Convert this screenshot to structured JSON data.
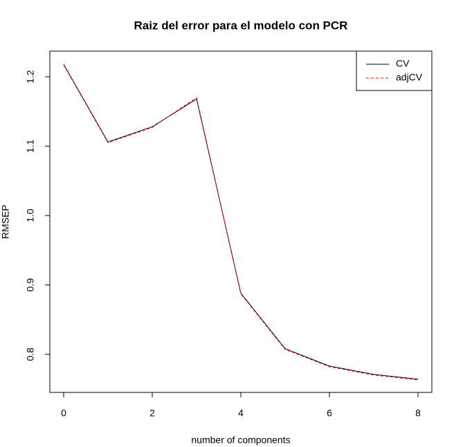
{
  "chart_data": {
    "type": "line",
    "title": "Raiz del error para el modelo con PCR",
    "x_label": "number of components",
    "y_label": "RMSEP",
    "x": [
      0,
      1,
      2,
      3,
      4,
      5,
      6,
      7,
      8
    ],
    "series": [
      {
        "name": "CV",
        "color": "#000000",
        "line_style": "solid",
        "values": [
          1.218,
          1.106,
          1.128,
          1.168,
          0.888,
          0.808,
          0.783,
          0.771,
          0.764
        ]
      },
      {
        "name": "adjCV",
        "color": "#ff0000",
        "line_style": "dashed",
        "values": [
          1.217,
          1.105,
          1.127,
          1.17,
          0.887,
          0.807,
          0.782,
          0.77,
          0.763
        ]
      }
    ],
    "xlim": [
      -0.3125,
      8.3125
    ],
    "xticks": [
      0,
      2,
      4,
      6,
      8
    ],
    "ylim": [
      0.745,
      1.237
    ],
    "yticks": [
      0.8,
      0.9,
      {
        "value": 1,
        "label": "1.0"
      },
      1.1,
      1.2
    ],
    "legend": "top-right"
  }
}
